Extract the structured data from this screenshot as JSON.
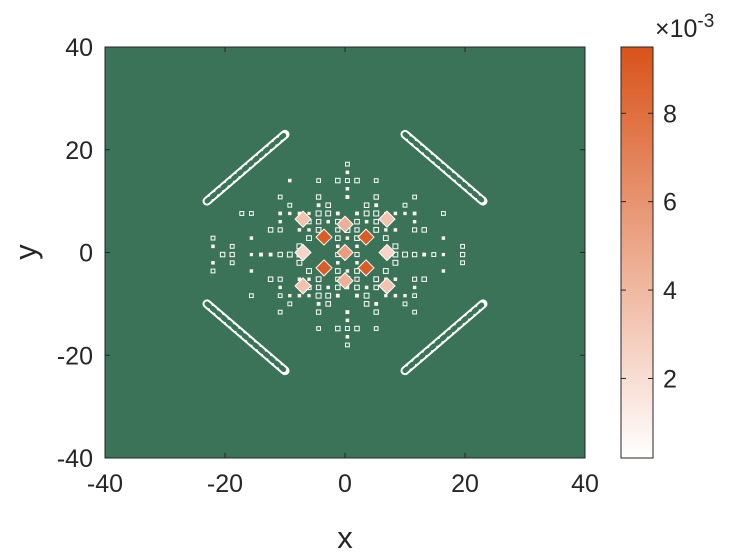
{
  "chart_data": {
    "type": "heatmap",
    "title": "",
    "xlabel": "x",
    "ylabel": "y",
    "xlim": [
      -40,
      40
    ],
    "ylim": [
      -40,
      40
    ],
    "xticks": [
      "-40",
      "-20",
      "0",
      "20",
      "40"
    ],
    "yticks": [
      "40",
      "20",
      "0",
      "-20",
      "-40"
    ],
    "xtick_values": [
      -40,
      -20,
      0,
      20,
      40
    ],
    "ytick_values": [
      40,
      20,
      0,
      -20,
      -40
    ],
    "background_value_color": "#3a7357",
    "contour_color": "#ffffff",
    "colorbar": {
      "exponent_prefix": "×10",
      "exponent": "-3",
      "range": [
        0.2,
        9.5
      ],
      "ticks": [
        "2",
        "4",
        "6",
        "8"
      ],
      "tick_values": [
        2,
        4,
        6,
        8
      ],
      "color_low": "#ffffff",
      "color_high": "#d95319"
    },
    "grid": false,
    "symmetry": "four-fold diamond pattern centered at origin",
    "peak_points": [
      {
        "x": -3.5,
        "y": 3,
        "value": 9.0
      },
      {
        "x": 3.5,
        "y": 3,
        "value": 9.0
      },
      {
        "x": -3.5,
        "y": -3,
        "value": 9.0
      },
      {
        "x": 3.5,
        "y": -3,
        "value": 9.0
      },
      {
        "x": 0,
        "y": 0,
        "value": 5.5
      },
      {
        "x": 0,
        "y": 5.5,
        "value": 4.5
      },
      {
        "x": 0,
        "y": -5.5,
        "value": 4.5
      },
      {
        "x": -7,
        "y": 6.5,
        "value": 3.5
      },
      {
        "x": 7,
        "y": 6.5,
        "value": 3.5
      },
      {
        "x": -7,
        "y": -6.5,
        "value": 3.5
      },
      {
        "x": 7,
        "y": -6.5,
        "value": 3.5
      },
      {
        "x": -7,
        "y": 0,
        "value": 2.5
      },
      {
        "x": 7,
        "y": 0,
        "value": 2.5
      }
    ],
    "diagonal_streaks": [
      {
        "x1": -23,
        "y1": 10,
        "x2": -10,
        "y2": 23
      },
      {
        "x1": 10,
        "y1": 23,
        "x2": 23,
        "y2": 10
      },
      {
        "x1": -23,
        "y1": -10,
        "x2": -10,
        "y2": -23
      },
      {
        "x1": 10,
        "y1": -23,
        "x2": 23,
        "y2": -10
      }
    ]
  }
}
